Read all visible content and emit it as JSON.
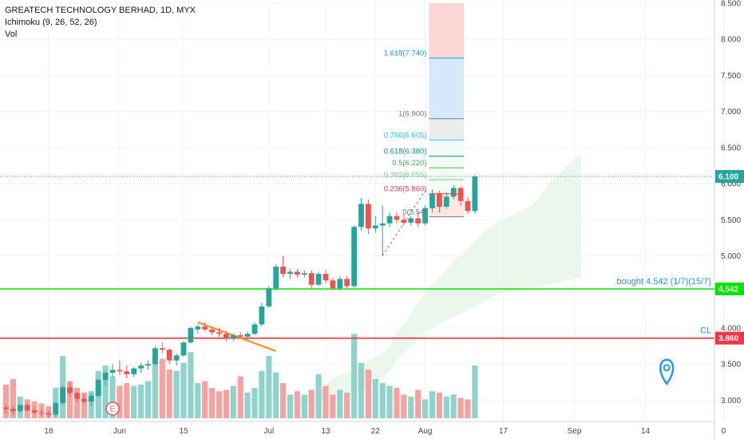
{
  "legend": {
    "symbol_line": "GREATECH TECHNOLOGY BERHAD, 1D, MYX",
    "indicator_line": "Ichimoku (9, 26, 52, 26)",
    "volume_line": "Vol"
  },
  "colors": {
    "up": "#26a69a",
    "down": "#ef5350",
    "up_vol": "#8fd3cc",
    "down_vol": "#f5a3a1",
    "green_line": "#00e600",
    "red_line": "#f23645",
    "trend_line": "#f7931a",
    "cloud": "#e8f5e9",
    "marker": "#2196f3"
  },
  "chart_data": {
    "type": "candlestick",
    "ylim": [
      2.75,
      8.5
    ],
    "y_ticks": [
      "8.500",
      "8.000",
      "7.500",
      "7.000",
      "6.500",
      "6.000",
      "5.500",
      "5.000",
      "4.500",
      "4.000",
      "3.500",
      "3.000"
    ],
    "x_ticks": [
      {
        "label": "18",
        "idx": 6
      },
      {
        "label": "Jun",
        "idx": 16
      },
      {
        "label": "15",
        "idx": 25
      },
      {
        "label": "Jul",
        "idx": 37
      },
      {
        "label": "13",
        "idx": 45
      },
      {
        "label": "22",
        "idx": 52
      },
      {
        "label": "Aug",
        "idx": 59
      },
      {
        "label": "17",
        "idx": 70
      },
      {
        "label": "Sep",
        "idx": 80
      },
      {
        "label": "14",
        "idx": 90
      },
      {
        "label": "0",
        "idx": 101
      }
    ],
    "candles": [
      {
        "o": 2.9,
        "h": 2.95,
        "l": 2.82,
        "c": 2.88
      },
      {
        "o": 2.88,
        "h": 2.92,
        "l": 2.8,
        "c": 2.85
      },
      {
        "o": 2.85,
        "h": 2.95,
        "l": 2.82,
        "c": 2.93
      },
      {
        "o": 2.93,
        "h": 2.96,
        "l": 2.84,
        "c": 2.86
      },
      {
        "o": 2.86,
        "h": 2.9,
        "l": 2.8,
        "c": 2.83
      },
      {
        "o": 2.83,
        "h": 2.88,
        "l": 2.78,
        "c": 2.82
      },
      {
        "o": 2.82,
        "h": 2.86,
        "l": 2.76,
        "c": 2.8
      },
      {
        "o": 2.8,
        "h": 2.98,
        "l": 2.78,
        "c": 2.96
      },
      {
        "o": 2.96,
        "h": 3.2,
        "l": 2.94,
        "c": 3.18
      },
      {
        "o": 3.18,
        "h": 3.25,
        "l": 3.05,
        "c": 3.1
      },
      {
        "o": 3.1,
        "h": 3.12,
        "l": 2.98,
        "c": 3.02
      },
      {
        "o": 3.02,
        "h": 3.08,
        "l": 2.95,
        "c": 2.98
      },
      {
        "o": 2.98,
        "h": 3.1,
        "l": 2.92,
        "c": 3.06
      },
      {
        "o": 3.06,
        "h": 3.3,
        "l": 3.04,
        "c": 3.28
      },
      {
        "o": 3.28,
        "h": 3.4,
        "l": 3.2,
        "c": 3.38
      },
      {
        "o": 3.38,
        "h": 3.5,
        "l": 3.32,
        "c": 3.42
      },
      {
        "o": 3.42,
        "h": 3.55,
        "l": 3.35,
        "c": 3.4
      },
      {
        "o": 3.4,
        "h": 3.48,
        "l": 3.3,
        "c": 3.36
      },
      {
        "o": 3.36,
        "h": 3.46,
        "l": 3.32,
        "c": 3.44
      },
      {
        "o": 3.44,
        "h": 3.52,
        "l": 3.38,
        "c": 3.48
      },
      {
        "o": 3.48,
        "h": 3.55,
        "l": 3.42,
        "c": 3.5
      },
      {
        "o": 3.5,
        "h": 3.75,
        "l": 3.48,
        "c": 3.72
      },
      {
        "o": 3.72,
        "h": 3.8,
        "l": 3.65,
        "c": 3.7
      },
      {
        "o": 3.7,
        "h": 3.72,
        "l": 3.5,
        "c": 3.55
      },
      {
        "o": 3.55,
        "h": 3.65,
        "l": 3.48,
        "c": 3.62
      },
      {
        "o": 3.62,
        "h": 3.82,
        "l": 3.6,
        "c": 3.8
      },
      {
        "o": 3.8,
        "h": 4.02,
        "l": 3.78,
        "c": 4.0
      },
      {
        "o": 3.98,
        "h": 4.05,
        "l": 3.92,
        "c": 4.02
      },
      {
        "o": 4.02,
        "h": 4.08,
        "l": 3.95,
        "c": 3.98
      },
      {
        "o": 3.98,
        "h": 4.02,
        "l": 3.9,
        "c": 3.94
      },
      {
        "o": 3.94,
        "h": 4.0,
        "l": 3.88,
        "c": 3.92
      },
      {
        "o": 3.92,
        "h": 3.96,
        "l": 3.82,
        "c": 3.86
      },
      {
        "o": 3.86,
        "h": 3.92,
        "l": 3.82,
        "c": 3.9
      },
      {
        "o": 3.9,
        "h": 3.94,
        "l": 3.85,
        "c": 3.88
      },
      {
        "o": 3.88,
        "h": 3.95,
        "l": 3.84,
        "c": 3.92
      },
      {
        "o": 3.92,
        "h": 4.08,
        "l": 3.9,
        "c": 4.05
      },
      {
        "o": 4.05,
        "h": 4.35,
        "l": 4.02,
        "c": 4.3
      },
      {
        "o": 4.3,
        "h": 4.58,
        "l": 4.28,
        "c": 4.55
      },
      {
        "o": 4.55,
        "h": 4.88,
        "l": 4.52,
        "c": 4.85
      },
      {
        "o": 4.85,
        "h": 5.0,
        "l": 4.7,
        "c": 4.75
      },
      {
        "o": 4.75,
        "h": 4.82,
        "l": 4.68,
        "c": 4.78
      },
      {
        "o": 4.78,
        "h": 4.82,
        "l": 4.7,
        "c": 4.74
      },
      {
        "o": 4.74,
        "h": 4.8,
        "l": 4.7,
        "c": 4.76
      },
      {
        "o": 4.76,
        "h": 4.8,
        "l": 4.55,
        "c": 4.6
      },
      {
        "o": 4.6,
        "h": 4.78,
        "l": 4.58,
        "c": 4.75
      },
      {
        "o": 4.75,
        "h": 4.8,
        "l": 4.62,
        "c": 4.66
      },
      {
        "o": 4.66,
        "h": 4.7,
        "l": 4.52,
        "c": 4.55
      },
      {
        "o": 4.55,
        "h": 4.72,
        "l": 4.52,
        "c": 4.68
      },
      {
        "o": 4.68,
        "h": 4.72,
        "l": 4.55,
        "c": 4.58
      },
      {
        "o": 4.58,
        "h": 5.42,
        "l": 4.56,
        "c": 5.4
      },
      {
        "o": 5.4,
        "h": 5.8,
        "l": 5.35,
        "c": 5.72
      },
      {
        "o": 5.72,
        "h": 5.78,
        "l": 5.3,
        "c": 5.38
      },
      {
        "o": 5.38,
        "h": 5.55,
        "l": 5.32,
        "c": 5.42
      },
      {
        "o": 5.42,
        "h": 5.7,
        "l": 5.0,
        "c": 5.45
      },
      {
        "o": 5.45,
        "h": 5.6,
        "l": 5.4,
        "c": 5.55
      },
      {
        "o": 5.55,
        "h": 5.6,
        "l": 5.45,
        "c": 5.5
      },
      {
        "o": 5.5,
        "h": 5.58,
        "l": 5.42,
        "c": 5.46
      },
      {
        "o": 5.46,
        "h": 5.55,
        "l": 5.42,
        "c": 5.52
      },
      {
        "o": 5.52,
        "h": 5.62,
        "l": 5.4,
        "c": 5.45
      },
      {
        "o": 5.45,
        "h": 5.7,
        "l": 5.42,
        "c": 5.66
      },
      {
        "o": 5.66,
        "h": 5.92,
        "l": 5.6,
        "c": 5.86
      },
      {
        "o": 5.86,
        "h": 5.9,
        "l": 5.6,
        "c": 5.68
      },
      {
        "o": 5.68,
        "h": 5.88,
        "l": 5.65,
        "c": 5.82
      },
      {
        "o": 5.82,
        "h": 5.98,
        "l": 5.78,
        "c": 5.94
      },
      {
        "o": 5.94,
        "h": 5.96,
        "l": 5.7,
        "c": 5.76
      },
      {
        "o": 5.76,
        "h": 5.82,
        "l": 5.58,
        "c": 5.62
      },
      {
        "o": 5.62,
        "h": 6.12,
        "l": 5.58,
        "c": 6.1
      }
    ],
    "volumes": [
      0.5,
      0.58,
      0.32,
      0.28,
      0.25,
      0.22,
      0.18,
      0.45,
      0.92,
      0.55,
      0.45,
      0.38,
      0.4,
      0.7,
      0.78,
      0.62,
      0.48,
      0.52,
      0.48,
      0.5,
      0.55,
      0.95,
      0.88,
      0.72,
      0.7,
      0.82,
      0.98,
      0.52,
      0.55,
      0.45,
      0.4,
      0.42,
      0.48,
      0.62,
      0.38,
      0.45,
      0.7,
      0.92,
      0.68,
      0.52,
      0.35,
      0.4,
      0.35,
      0.42,
      0.65,
      0.48,
      0.35,
      0.42,
      0.38,
      1.25,
      0.82,
      0.72,
      0.58,
      0.52,
      0.48,
      0.45,
      0.35,
      0.32,
      0.42,
      0.28,
      0.4,
      0.38,
      0.32,
      0.35,
      0.3,
      0.28,
      0.78
    ],
    "volume_max": 1.3,
    "cloud": {
      "x_start_idx": 41,
      "upper": [
        3.0,
        3.05,
        3.1,
        3.15,
        3.2,
        3.3,
        3.35,
        3.4,
        3.45,
        3.5,
        3.55,
        3.6,
        3.65,
        3.75,
        3.95,
        4.05,
        4.2,
        4.35,
        4.5,
        4.6,
        4.7,
        4.8,
        4.95,
        5.0,
        5.1,
        5.2,
        5.3,
        5.4,
        5.45,
        5.5,
        5.55,
        5.6,
        5.65,
        5.7,
        5.8,
        5.95,
        6.05,
        6.15,
        6.25,
        6.35,
        6.4
      ],
      "lower": [
        2.9,
        2.92,
        2.95,
        2.98,
        3.0,
        3.05,
        3.08,
        3.1,
        3.12,
        3.15,
        3.2,
        3.25,
        3.3,
        3.4,
        3.55,
        3.65,
        3.75,
        3.85,
        3.95,
        4.0,
        4.05,
        4.1,
        4.15,
        4.2,
        4.25,
        4.3,
        4.35,
        4.4,
        4.45,
        4.48,
        4.5,
        4.52,
        4.55,
        4.56,
        4.58,
        4.6,
        4.62,
        4.64,
        4.66,
        4.68,
        4.7
      ]
    },
    "fib_levels": [
      {
        "label": "1.618(7.740)",
        "value": 7.74,
        "color": "#2196f3"
      },
      {
        "label": "1(6.900)",
        "value": 6.9,
        "color": "#787b86"
      },
      {
        "label": "0.786(6.605)",
        "value": 6.605,
        "color": "#26c6da"
      },
      {
        "label": "0.618(6.380)",
        "value": 6.38,
        "color": "#009688"
      },
      {
        "label": "0.5(6.220)",
        "value": 6.22,
        "color": "#4caf50"
      },
      {
        "label": "0.382(6.055)",
        "value": 6.055,
        "color": "#81c784"
      },
      {
        "label": "0.236(5.860)",
        "value": 5.86,
        "color": "#f23645"
      },
      {
        "label": "0(5.54)",
        "value": 5.54,
        "color": "#787b86"
      }
    ],
    "fib_zones": [
      {
        "from": 7.74,
        "to": 8.5,
        "color": "#fcd5d5"
      },
      {
        "from": 6.9,
        "to": 7.74,
        "color": "#d6e9fb"
      },
      {
        "from": 6.605,
        "to": 6.9,
        "color": "#ececec"
      },
      {
        "from": 6.38,
        "to": 6.605,
        "color": "#f2fafa"
      },
      {
        "from": 5.86,
        "to": 6.38,
        "color": "#f4faf4"
      },
      {
        "from": 5.54,
        "to": 5.86,
        "color": "#fde6e6"
      }
    ],
    "fib_x_idx": [
      60,
      64
    ],
    "lines": {
      "bought": {
        "value": 4.542,
        "label": "bought 4.542 (1/7)(15/7)",
        "price_label": "4.542"
      },
      "cl": {
        "value": 3.86,
        "label": "CL",
        "price_label": "3.860"
      },
      "last": {
        "value": 6.1,
        "price_label": "6.100"
      }
    },
    "trend_line": {
      "from_idx": 27,
      "from_val": 4.08,
      "to_idx": 38,
      "to_val": 3.68
    },
    "dashed_line": {
      "from_idx": 53,
      "from_val": 5.0,
      "to_idx": 59,
      "to_val": 5.9
    },
    "earnings_marker": {
      "label": "E",
      "idx": 15
    },
    "location_marker": {
      "idx": 93,
      "value": 3.45
    }
  }
}
